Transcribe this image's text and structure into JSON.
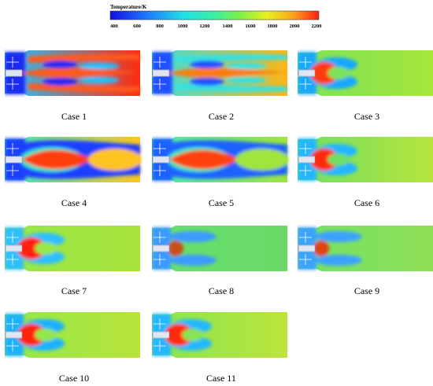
{
  "colorbar": {
    "title": "Temperature/K",
    "ticks": [
      "400",
      "600",
      "800",
      "1000",
      "1200",
      "1400",
      "1600",
      "1800",
      "2000",
      "2200"
    ]
  },
  "cases": [
    {
      "label": "Case 1",
      "pattern": "tri-jet",
      "colors": [
        "#1a2cf0",
        "#ff5a1c",
        "#1fc5ff",
        "#ff2b10"
      ]
    },
    {
      "label": "Case 2",
      "pattern": "long-jet",
      "colors": [
        "#2050ff",
        "#ff7a10",
        "#39e0e0",
        "#ffb515"
      ]
    },
    {
      "label": "Case 3",
      "pattern": "short-core",
      "colors": [
        "#19a8ff",
        "#ff3a10",
        "#7be35a",
        "#a6e63a"
      ]
    },
    {
      "label": "Case 4",
      "pattern": "lens-core",
      "colors": [
        "#1a40ff",
        "#ff3e10",
        "#38e8c0",
        "#ffc420"
      ]
    },
    {
      "label": "Case 5",
      "pattern": "lens-core",
      "colors": [
        "#1b62ff",
        "#ff4210",
        "#47e8b8",
        "#9fe53a"
      ]
    },
    {
      "label": "Case 6",
      "pattern": "short-core",
      "colors": [
        "#22b6ff",
        "#ff2a10",
        "#6ee064",
        "#b8e43c"
      ]
    },
    {
      "label": "Case 7",
      "pattern": "short-core",
      "colors": [
        "#2fbfff",
        "#ff2410",
        "#96e84a",
        "#a8e23a"
      ]
    },
    {
      "label": "Case 8",
      "pattern": "diffuse",
      "colors": [
        "#3a9bff",
        "#c85010",
        "#66e06e",
        "#6bd966"
      ]
    },
    {
      "label": "Case 9",
      "pattern": "diffuse",
      "colors": [
        "#3aa2ff",
        "#e04410",
        "#74e266",
        "#8fdf55"
      ]
    },
    {
      "label": "Case 10",
      "pattern": "short-core",
      "colors": [
        "#1fb1ff",
        "#ff2010",
        "#92e84c",
        "#b8e43a"
      ]
    },
    {
      "label": "Case 11",
      "pattern": "short-core",
      "colors": [
        "#24b7ff",
        "#ff2a10",
        "#86e652",
        "#bde43b"
      ]
    }
  ]
}
